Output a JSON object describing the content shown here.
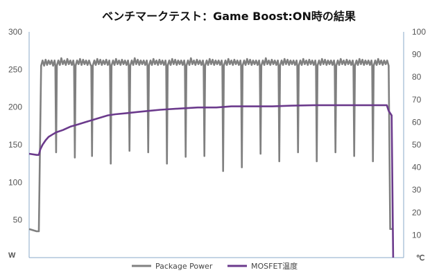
{
  "chart_data": {
    "type": "line",
    "title": "ベンチマークテスト：Game Boost:ON時の結果",
    "y_left": {
      "unit": "W",
      "ticks": [
        "50",
        "100",
        "150",
        "200",
        "250",
        "300"
      ],
      "range": [
        0,
        300
      ]
    },
    "y_right": {
      "unit": "℃",
      "ticks": [
        "10",
        "20",
        "30",
        "40",
        "50",
        "60",
        "70",
        "80",
        "90",
        "100"
      ],
      "range": [
        0,
        100
      ]
    },
    "x": {
      "range": [
        0,
        1000
      ],
      "ticks": []
    },
    "series": [
      {
        "name": "Package Power",
        "axis": "left",
        "color": "#808080",
        "points": [
          [
            0,
            38
          ],
          [
            20,
            35
          ],
          [
            26,
            35
          ],
          [
            32,
            255
          ],
          [
            36,
            262
          ],
          [
            40,
            255
          ],
          [
            44,
            263
          ],
          [
            48,
            256
          ],
          [
            52,
            262
          ],
          [
            56,
            257
          ],
          [
            60,
            262
          ],
          [
            64,
            255
          ],
          [
            68,
            262
          ],
          [
            70,
            255
          ],
          [
            72,
            140
          ],
          [
            74,
            255
          ],
          [
            78,
            262
          ],
          [
            82,
            256
          ],
          [
            86,
            265
          ],
          [
            90,
            257
          ],
          [
            94,
            262
          ],
          [
            98,
            256
          ],
          [
            102,
            264
          ],
          [
            106,
            257
          ],
          [
            110,
            262
          ],
          [
            114,
            256
          ],
          [
            118,
            262
          ],
          [
            120,
            255
          ],
          [
            122,
            133
          ],
          [
            124,
            255
          ],
          [
            128,
            262
          ],
          [
            132,
            257
          ],
          [
            136,
            264
          ],
          [
            140,
            256
          ],
          [
            144,
            263
          ],
          [
            148,
            257
          ],
          [
            152,
            262
          ],
          [
            156,
            256
          ],
          [
            160,
            262
          ],
          [
            164,
            256
          ],
          [
            166,
            255
          ],
          [
            168,
            135
          ],
          [
            170,
            255
          ],
          [
            174,
            262
          ],
          [
            178,
            256
          ],
          [
            182,
            264
          ],
          [
            186,
            257
          ],
          [
            190,
            263
          ],
          [
            194,
            256
          ],
          [
            198,
            262
          ],
          [
            202,
            257
          ],
          [
            206,
            263
          ],
          [
            210,
            256
          ],
          [
            214,
            262
          ],
          [
            216,
            255
          ],
          [
            218,
            125
          ],
          [
            220,
            255
          ],
          [
            224,
            262
          ],
          [
            228,
            256
          ],
          [
            232,
            264
          ],
          [
            236,
            257
          ],
          [
            240,
            262
          ],
          [
            244,
            256
          ],
          [
            248,
            263
          ],
          [
            252,
            257
          ],
          [
            256,
            262
          ],
          [
            260,
            256
          ],
          [
            264,
            262
          ],
          [
            266,
            255
          ],
          [
            268,
            142
          ],
          [
            270,
            255
          ],
          [
            274,
            262
          ],
          [
            278,
            256
          ],
          [
            282,
            265
          ],
          [
            286,
            257
          ],
          [
            290,
            263
          ],
          [
            294,
            256
          ],
          [
            298,
            262
          ],
          [
            302,
            257
          ],
          [
            306,
            262
          ],
          [
            310,
            256
          ],
          [
            314,
            262
          ],
          [
            316,
            255
          ],
          [
            318,
            140
          ],
          [
            320,
            255
          ],
          [
            324,
            262
          ],
          [
            328,
            256
          ],
          [
            332,
            264
          ],
          [
            336,
            257
          ],
          [
            340,
            262
          ],
          [
            344,
            256
          ],
          [
            348,
            263
          ],
          [
            352,
            257
          ],
          [
            356,
            262
          ],
          [
            360,
            256
          ],
          [
            364,
            262
          ],
          [
            366,
            255
          ],
          [
            368,
            125
          ],
          [
            370,
            255
          ],
          [
            374,
            262
          ],
          [
            378,
            256
          ],
          [
            382,
            264
          ],
          [
            386,
            257
          ],
          [
            390,
            263
          ],
          [
            394,
            256
          ],
          [
            398,
            262
          ],
          [
            402,
            257
          ],
          [
            406,
            262
          ],
          [
            410,
            256
          ],
          [
            414,
            262
          ],
          [
            416,
            255
          ],
          [
            418,
            134
          ],
          [
            420,
            255
          ],
          [
            424,
            262
          ],
          [
            428,
            256
          ],
          [
            432,
            265
          ],
          [
            436,
            257
          ],
          [
            440,
            262
          ],
          [
            444,
            256
          ],
          [
            448,
            263
          ],
          [
            452,
            257
          ],
          [
            456,
            262
          ],
          [
            460,
            256
          ],
          [
            464,
            262
          ],
          [
            466,
            255
          ],
          [
            468,
            135
          ],
          [
            470,
            255
          ],
          [
            474,
            262
          ],
          [
            478,
            256
          ],
          [
            482,
            264
          ],
          [
            486,
            257
          ],
          [
            490,
            263
          ],
          [
            494,
            256
          ],
          [
            498,
            262
          ],
          [
            502,
            257
          ],
          [
            506,
            262
          ],
          [
            510,
            256
          ],
          [
            514,
            262
          ],
          [
            516,
            255
          ],
          [
            518,
            115
          ],
          [
            520,
            255
          ],
          [
            524,
            262
          ],
          [
            528,
            256
          ],
          [
            532,
            264
          ],
          [
            536,
            257
          ],
          [
            540,
            262
          ],
          [
            544,
            256
          ],
          [
            548,
            263
          ],
          [
            552,
            257
          ],
          [
            556,
            262
          ],
          [
            560,
            256
          ],
          [
            564,
            262
          ],
          [
            566,
            255
          ],
          [
            568,
            120
          ],
          [
            570,
            255
          ],
          [
            574,
            262
          ],
          [
            578,
            256
          ],
          [
            582,
            264
          ],
          [
            586,
            257
          ],
          [
            590,
            263
          ],
          [
            594,
            256
          ],
          [
            598,
            262
          ],
          [
            602,
            257
          ],
          [
            606,
            262
          ],
          [
            610,
            256
          ],
          [
            614,
            262
          ],
          [
            616,
            255
          ],
          [
            618,
            138
          ],
          [
            620,
            255
          ],
          [
            624,
            262
          ],
          [
            628,
            256
          ],
          [
            632,
            265
          ],
          [
            636,
            257
          ],
          [
            640,
            262
          ],
          [
            644,
            256
          ],
          [
            648,
            263
          ],
          [
            652,
            257
          ],
          [
            656,
            262
          ],
          [
            660,
            256
          ],
          [
            664,
            262
          ],
          [
            666,
            255
          ],
          [
            668,
            128
          ],
          [
            670,
            255
          ],
          [
            674,
            262
          ],
          [
            678,
            256
          ],
          [
            682,
            264
          ],
          [
            686,
            257
          ],
          [
            690,
            263
          ],
          [
            694,
            256
          ],
          [
            698,
            262
          ],
          [
            702,
            257
          ],
          [
            706,
            262
          ],
          [
            710,
            256
          ],
          [
            714,
            262
          ],
          [
            716,
            255
          ],
          [
            718,
            140
          ],
          [
            720,
            255
          ],
          [
            724,
            262
          ],
          [
            728,
            256
          ],
          [
            732,
            264
          ],
          [
            736,
            257
          ],
          [
            740,
            262
          ],
          [
            744,
            256
          ],
          [
            748,
            263
          ],
          [
            752,
            257
          ],
          [
            756,
            262
          ],
          [
            760,
            256
          ],
          [
            764,
            262
          ],
          [
            766,
            255
          ],
          [
            768,
            128
          ],
          [
            770,
            255
          ],
          [
            774,
            262
          ],
          [
            778,
            256
          ],
          [
            782,
            264
          ],
          [
            786,
            257
          ],
          [
            790,
            263
          ],
          [
            794,
            256
          ],
          [
            798,
            262
          ],
          [
            802,
            257
          ],
          [
            806,
            262
          ],
          [
            810,
            256
          ],
          [
            814,
            262
          ],
          [
            816,
            255
          ],
          [
            818,
            140
          ],
          [
            820,
            255
          ],
          [
            824,
            262
          ],
          [
            828,
            256
          ],
          [
            832,
            264
          ],
          [
            836,
            257
          ],
          [
            840,
            262
          ],
          [
            844,
            256
          ],
          [
            848,
            263
          ],
          [
            852,
            257
          ],
          [
            856,
            262
          ],
          [
            860,
            256
          ],
          [
            864,
            262
          ],
          [
            866,
            255
          ],
          [
            868,
            135
          ],
          [
            870,
            255
          ],
          [
            874,
            262
          ],
          [
            878,
            256
          ],
          [
            882,
            264
          ],
          [
            886,
            257
          ],
          [
            890,
            263
          ],
          [
            894,
            256
          ],
          [
            898,
            262
          ],
          [
            902,
            257
          ],
          [
            906,
            262
          ],
          [
            910,
            256
          ],
          [
            914,
            262
          ],
          [
            916,
            255
          ],
          [
            918,
            128
          ],
          [
            920,
            255
          ],
          [
            924,
            262
          ],
          [
            928,
            256
          ],
          [
            932,
            264
          ],
          [
            936,
            257
          ],
          [
            940,
            262
          ],
          [
            944,
            256
          ],
          [
            948,
            262
          ],
          [
            952,
            257
          ],
          [
            956,
            262
          ],
          [
            960,
            255
          ],
          [
            964,
            38
          ],
          [
            972,
            38
          ]
        ]
      },
      {
        "name": "MOSFET温度",
        "axis": "right",
        "color": "#6b3a8c",
        "points": [
          [
            0,
            46
          ],
          [
            20,
            45.5
          ],
          [
            26,
            45.5
          ],
          [
            30,
            48
          ],
          [
            36,
            50
          ],
          [
            44,
            52
          ],
          [
            52,
            53.5
          ],
          [
            62,
            54.5
          ],
          [
            72,
            55.5
          ],
          [
            90,
            56.5
          ],
          [
            110,
            58
          ],
          [
            130,
            59
          ],
          [
            150,
            60
          ],
          [
            170,
            61
          ],
          [
            190,
            62
          ],
          [
            210,
            63
          ],
          [
            230,
            63.5
          ],
          [
            260,
            64
          ],
          [
            290,
            64.5
          ],
          [
            320,
            65
          ],
          [
            350,
            65.5
          ],
          [
            400,
            66
          ],
          [
            450,
            66.5
          ],
          [
            500,
            66.5
          ],
          [
            540,
            67
          ],
          [
            600,
            67
          ],
          [
            650,
            67
          ],
          [
            700,
            67.3
          ],
          [
            760,
            67.5
          ],
          [
            820,
            67.5
          ],
          [
            880,
            67.5
          ],
          [
            930,
            67.5
          ],
          [
            955,
            67.5
          ],
          [
            960,
            65
          ],
          [
            968,
            63
          ],
          [
            972,
            0
          ]
        ]
      }
    ],
    "legend": {
      "position": "bottom",
      "entries": [
        "Package Power",
        "MOSFET温度"
      ]
    }
  }
}
